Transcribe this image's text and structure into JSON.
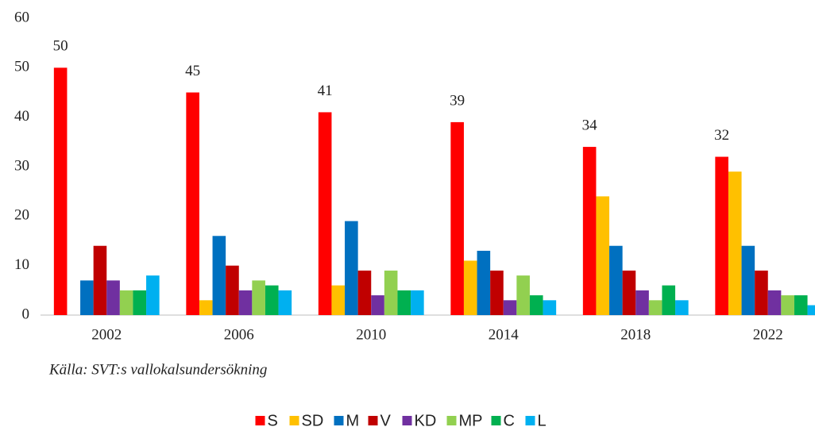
{
  "chart_data": {
    "type": "bar",
    "categories": [
      "2002",
      "2006",
      "2010",
      "2014",
      "2018",
      "2022"
    ],
    "series": [
      {
        "name": "S",
        "color": "#ff0000",
        "values": [
          50,
          45,
          41,
          39,
          34,
          32
        ],
        "show_values": true
      },
      {
        "name": "SD",
        "color": "#ffc000",
        "values": [
          0,
          3,
          6,
          11,
          24,
          29
        ]
      },
      {
        "name": "M",
        "color": "#0070c0",
        "values": [
          7,
          16,
          19,
          13,
          14,
          14
        ]
      },
      {
        "name": "V",
        "color": "#c00000",
        "values": [
          14,
          10,
          9,
          9,
          9,
          9
        ]
      },
      {
        "name": "KD",
        "color": "#7030a0",
        "values": [
          7,
          5,
          4,
          3,
          5,
          5
        ]
      },
      {
        "name": "MP",
        "color": "#92d050",
        "values": [
          5,
          7,
          9,
          8,
          3,
          4
        ]
      },
      {
        "name": "C",
        "color": "#00b050",
        "values": [
          5,
          6,
          5,
          4,
          6,
          4
        ]
      },
      {
        "name": "L",
        "color": "#00b0f0",
        "values": [
          8,
          5,
          5,
          3,
          3,
          2
        ]
      }
    ],
    "ylim": [
      0,
      60
    ],
    "yticks": [
      0,
      10,
      20,
      30,
      40,
      50,
      60
    ],
    "grid": false,
    "annotation": "Källa: SVT:s vallokalsundersökning",
    "legend": "bottom"
  }
}
